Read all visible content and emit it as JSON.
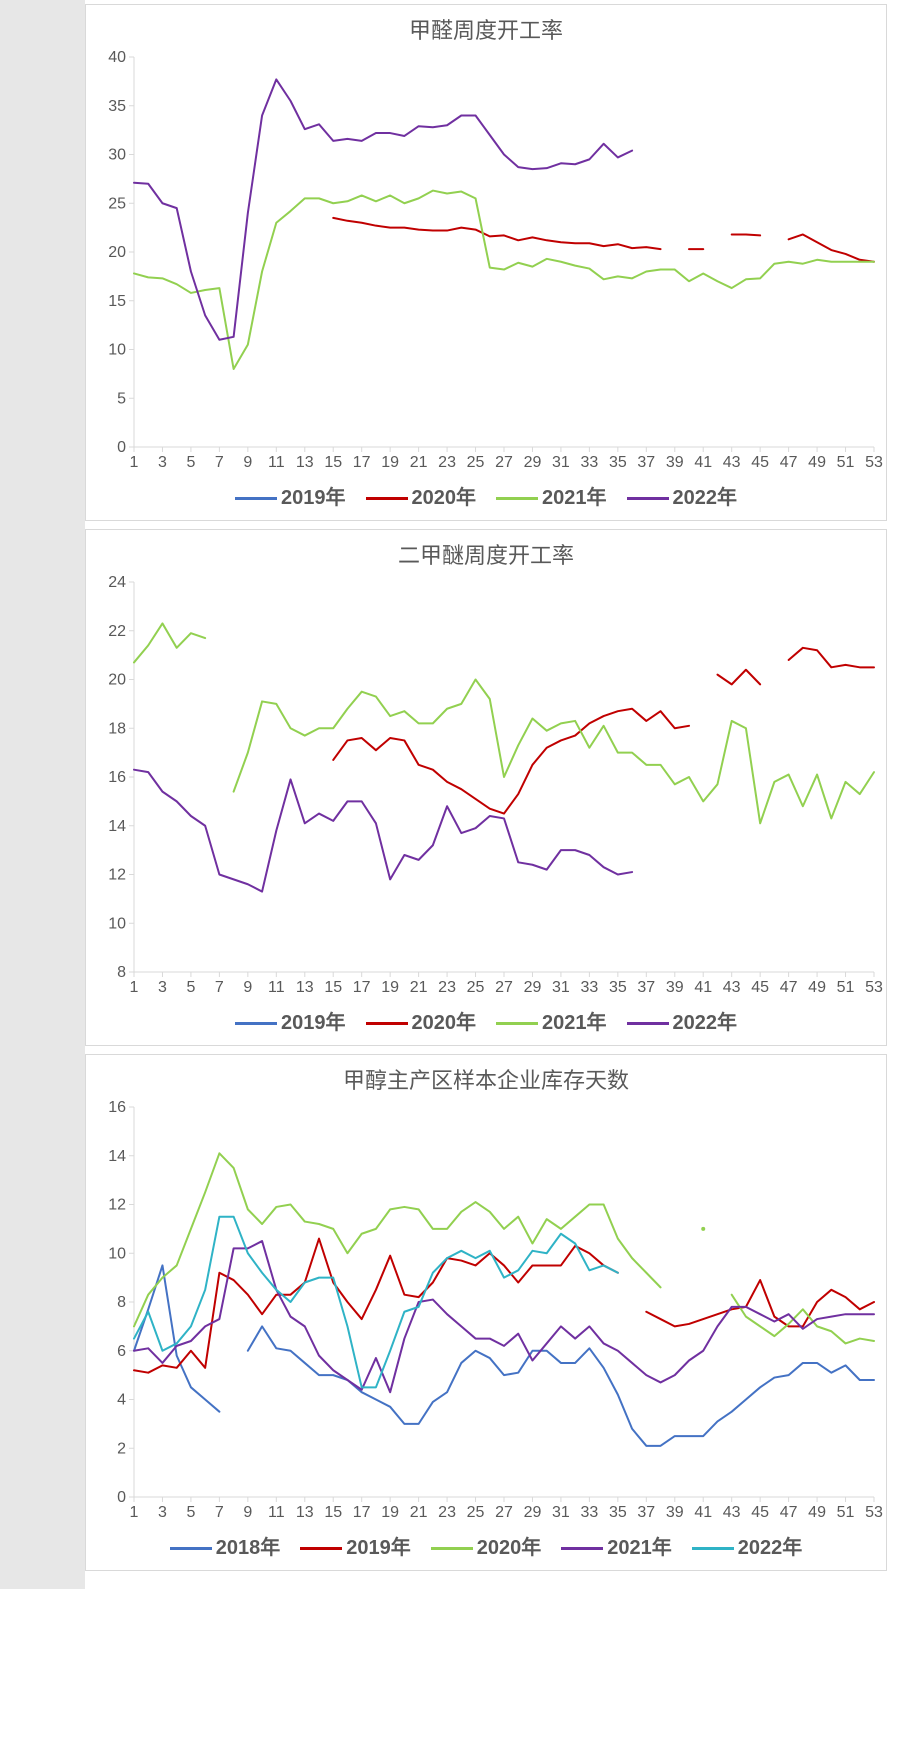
{
  "chart1": {
    "type": "line",
    "title": "甲醛周度开工率",
    "title_fontsize": 22,
    "title_color": "#595959",
    "background_color": "#ffffff",
    "plot_border_color": "#d9d9d9",
    "axis_color": "#d9d9d9",
    "tick_label_color": "#595959",
    "tick_fontsize": 16,
    "x_categories": [
      1,
      2,
      3,
      4,
      5,
      6,
      7,
      8,
      9,
      10,
      11,
      12,
      13,
      14,
      15,
      16,
      17,
      18,
      19,
      20,
      21,
      22,
      23,
      24,
      25,
      26,
      27,
      28,
      29,
      30,
      31,
      32,
      33,
      34,
      35,
      36,
      37,
      38,
      39,
      40,
      41,
      42,
      43,
      44,
      45,
      46,
      47,
      48,
      49,
      50,
      51,
      52,
      53
    ],
    "x_tick_step": 2,
    "ylim": [
      0,
      40
    ],
    "ytick_step": 5,
    "grid": false,
    "line_width": 2,
    "legend_fontsize": 20,
    "legend_fontweight": "bold",
    "legend_color": "#595959",
    "series": [
      {
        "name": "2019年",
        "color": "#4472c4",
        "data": []
      },
      {
        "name": "2020年",
        "color": "#c00000",
        "data": [
          null,
          null,
          null,
          null,
          null,
          null,
          null,
          null,
          null,
          null,
          null,
          null,
          null,
          null,
          23.5,
          23.2,
          23.0,
          22.7,
          22.5,
          22.5,
          22.3,
          22.2,
          22.2,
          22.5,
          22.3,
          21.6,
          21.7,
          21.2,
          21.5,
          21.2,
          21.0,
          20.9,
          20.9,
          20.6,
          20.8,
          20.4,
          20.5,
          20.3,
          null,
          20.3,
          20.3,
          null,
          21.8,
          21.8,
          21.7,
          null,
          21.3,
          21.8,
          21.0,
          20.2,
          19.8,
          19.2,
          19.0
        ]
      },
      {
        "name": "2021年",
        "color": "#92d050",
        "data": [
          17.8,
          17.4,
          17.3,
          16.7,
          15.8,
          16.1,
          16.3,
          8.0,
          10.5,
          18.0,
          23.0,
          24.2,
          25.5,
          25.5,
          25.0,
          25.2,
          25.8,
          25.2,
          25.8,
          25.0,
          25.5,
          26.3,
          26.0,
          26.2,
          25.5,
          18.4,
          18.2,
          18.9,
          18.5,
          19.3,
          19.0,
          18.6,
          18.3,
          17.2,
          17.5,
          17.3,
          18.0,
          18.2,
          18.2,
          17.0,
          17.8,
          17.0,
          16.3,
          17.2,
          17.3,
          18.8,
          19.0,
          18.8,
          19.2,
          19.0,
          19.0,
          19.0,
          19.0
        ]
      },
      {
        "name": "2022年",
        "color": "#7030a0",
        "data": [
          27.1,
          27.0,
          25.0,
          24.5,
          18.0,
          13.5,
          11.0,
          11.3,
          24.0,
          34.0,
          37.7,
          35.5,
          32.6,
          33.1,
          31.4,
          31.6,
          31.4,
          32.2,
          32.2,
          31.9,
          32.9,
          32.8,
          33.0,
          34.0,
          34.0,
          32.0,
          30.0,
          28.7,
          28.5,
          28.6,
          29.1,
          29.0,
          29.5,
          31.1,
          29.7,
          30.4,
          null,
          null,
          null,
          null,
          null,
          null,
          null,
          null,
          null,
          null,
          null,
          null,
          null,
          null,
          null,
          null,
          null
        ]
      }
    ]
  },
  "chart2": {
    "type": "line",
    "title": "二甲醚周度开工率",
    "title_fontsize": 22,
    "title_color": "#595959",
    "background_color": "#ffffff",
    "plot_border_color": "#d9d9d9",
    "axis_color": "#d9d9d9",
    "tick_label_color": "#595959",
    "tick_fontsize": 16,
    "x_categories": [
      1,
      2,
      3,
      4,
      5,
      6,
      7,
      8,
      9,
      10,
      11,
      12,
      13,
      14,
      15,
      16,
      17,
      18,
      19,
      20,
      21,
      22,
      23,
      24,
      25,
      26,
      27,
      28,
      29,
      30,
      31,
      32,
      33,
      34,
      35,
      36,
      37,
      38,
      39,
      40,
      41,
      42,
      43,
      44,
      45,
      46,
      47,
      48,
      49,
      50,
      51,
      52,
      53
    ],
    "x_tick_step": 2,
    "ylim": [
      8,
      24
    ],
    "ytick_step": 2,
    "grid": false,
    "line_width": 2,
    "legend_fontsize": 20,
    "legend_fontweight": "bold",
    "legend_color": "#595959",
    "series": [
      {
        "name": "2019年",
        "color": "#4472c4",
        "data": []
      },
      {
        "name": "2020年",
        "color": "#c00000",
        "data": [
          null,
          null,
          null,
          null,
          null,
          null,
          null,
          null,
          null,
          null,
          null,
          null,
          null,
          null,
          16.7,
          17.5,
          17.6,
          17.1,
          17.6,
          17.5,
          16.5,
          16.3,
          15.8,
          15.5,
          15.1,
          14.7,
          14.5,
          15.3,
          16.5,
          17.2,
          17.5,
          17.7,
          18.2,
          18.5,
          18.7,
          18.8,
          18.3,
          18.7,
          18.0,
          18.1,
          null,
          20.2,
          19.8,
          20.4,
          19.8,
          null,
          20.8,
          21.3,
          21.2,
          20.5,
          20.6,
          20.5,
          20.5
        ]
      },
      {
        "name": "2021年",
        "color": "#92d050",
        "data": [
          20.7,
          21.4,
          22.3,
          21.3,
          21.9,
          21.7,
          null,
          15.4,
          17.0,
          19.1,
          19.0,
          18.0,
          17.7,
          18.0,
          18.0,
          18.8,
          19.5,
          19.3,
          18.5,
          18.7,
          18.2,
          18.2,
          18.8,
          19.0,
          20.0,
          19.2,
          16.0,
          17.3,
          18.4,
          17.9,
          18.2,
          18.3,
          17.2,
          18.1,
          17.0,
          17.0,
          16.5,
          16.5,
          15.7,
          16.0,
          15.0,
          15.7,
          18.3,
          18.0,
          14.1,
          15.8,
          16.1,
          14.8,
          16.1,
          14.3,
          15.8,
          15.3,
          16.2
        ]
      },
      {
        "name": "2022年",
        "color": "#7030a0",
        "data": [
          16.3,
          16.2,
          15.4,
          15.0,
          14.4,
          14.0,
          12.0,
          11.8,
          11.6,
          11.3,
          13.8,
          15.9,
          14.1,
          14.5,
          14.2,
          15.0,
          15.0,
          14.1,
          11.8,
          12.8,
          12.6,
          13.2,
          14.8,
          13.7,
          13.9,
          14.4,
          14.3,
          12.5,
          12.4,
          12.2,
          13.0,
          13.0,
          12.8,
          12.3,
          12.0,
          12.1,
          null,
          null,
          null,
          null,
          null,
          null,
          null,
          null,
          null,
          null,
          null,
          null,
          null,
          null,
          null,
          null,
          null
        ]
      }
    ]
  },
  "chart3": {
    "type": "line",
    "title": "甲醇主产区样本企业库存天数",
    "title_fontsize": 22,
    "title_color": "#595959",
    "background_color": "#ffffff",
    "plot_border_color": "#d9d9d9",
    "axis_color": "#d9d9d9",
    "tick_label_color": "#595959",
    "tick_fontsize": 16,
    "x_categories": [
      1,
      2,
      3,
      4,
      5,
      6,
      7,
      8,
      9,
      10,
      11,
      12,
      13,
      14,
      15,
      16,
      17,
      18,
      19,
      20,
      21,
      22,
      23,
      24,
      25,
      26,
      27,
      28,
      29,
      30,
      31,
      32,
      33,
      34,
      35,
      36,
      37,
      38,
      39,
      40,
      41,
      42,
      43,
      44,
      45,
      46,
      47,
      48,
      49,
      50,
      51,
      52,
      53
    ],
    "x_tick_step": 2,
    "ylim": [
      0,
      16
    ],
    "ytick_step": 2,
    "grid": false,
    "line_width": 2,
    "legend_fontsize": 20,
    "legend_fontweight": "bold",
    "legend_color": "#595959",
    "series": [
      {
        "name": "2018年",
        "color": "#4472c4",
        "data": [
          6.0,
          7.7,
          9.5,
          5.8,
          4.5,
          4.0,
          3.5,
          null,
          6.0,
          7.0,
          6.1,
          6.0,
          5.5,
          5.0,
          5.0,
          4.8,
          4.3,
          4.0,
          3.7,
          3.0,
          3.0,
          3.9,
          4.3,
          5.5,
          6.0,
          5.7,
          5.0,
          5.1,
          6.0,
          6.0,
          5.5,
          5.5,
          6.1,
          5.3,
          4.2,
          2.8,
          2.1,
          2.1,
          2.5,
          2.5,
          2.5,
          3.1,
          3.5,
          4.0,
          4.5,
          4.9,
          5.0,
          5.5,
          5.5,
          5.1,
          5.4,
          4.8,
          4.8
        ]
      },
      {
        "name": "2019年",
        "color": "#c00000",
        "data": [
          5.2,
          5.1,
          5.4,
          5.3,
          6.0,
          5.3,
          9.2,
          8.9,
          8.3,
          7.5,
          8.3,
          8.3,
          8.8,
          10.6,
          8.8,
          8.0,
          7.3,
          8.5,
          9.9,
          8.3,
          8.2,
          8.8,
          9.8,
          9.7,
          9.5,
          10.0,
          9.5,
          8.8,
          9.5,
          9.5,
          9.5,
          10.3,
          10.0,
          9.5,
          9.2,
          null,
          7.6,
          7.3,
          7.0,
          7.1,
          7.3,
          7.5,
          7.7,
          7.8,
          8.9,
          7.4,
          7.0,
          7.0,
          8.0,
          8.5,
          8.2,
          7.7,
          8.0
        ]
      },
      {
        "name": "2020年",
        "color": "#92d050",
        "data": [
          7.0,
          8.3,
          9.0,
          9.5,
          11.0,
          12.5,
          14.1,
          13.5,
          11.8,
          11.2,
          11.9,
          12.0,
          11.3,
          11.2,
          11.0,
          10.0,
          10.8,
          11.0,
          11.8,
          11.9,
          11.8,
          11.0,
          11.0,
          11.7,
          12.1,
          11.7,
          11.0,
          11.5,
          10.4,
          11.4,
          11.0,
          11.5,
          12.0,
          12.0,
          10.6,
          9.8,
          9.2,
          8.6,
          null,
          null,
          11.0,
          null,
          8.3,
          7.4,
          7.0,
          6.6,
          7.1,
          7.7,
          7.0,
          6.8,
          6.3,
          6.5,
          6.4
        ]
      },
      {
        "name": "2021年",
        "color": "#7030a0",
        "data": [
          6.0,
          6.1,
          5.5,
          6.2,
          6.4,
          7.0,
          7.3,
          10.2,
          10.2,
          10.5,
          8.5,
          7.4,
          7.0,
          5.8,
          5.2,
          4.8,
          4.4,
          5.7,
          4.3,
          6.5,
          8.0,
          8.1,
          7.5,
          7.0,
          6.5,
          6.5,
          6.2,
          6.7,
          5.6,
          6.3,
          7.0,
          6.5,
          7.0,
          6.3,
          6.0,
          5.5,
          5.0,
          4.7,
          5.0,
          5.6,
          6.0,
          7.0,
          7.8,
          7.8,
          7.5,
          7.2,
          7.5,
          6.9,
          7.3,
          7.4,
          7.5,
          7.5,
          7.5
        ]
      },
      {
        "name": "2022年",
        "color": "#2fb3c6",
        "data": [
          6.5,
          7.6,
          6.0,
          6.3,
          7.0,
          8.5,
          11.5,
          11.5,
          10.0,
          9.2,
          8.5,
          8.0,
          8.8,
          9.0,
          9.0,
          7.0,
          4.5,
          4.5,
          6.0,
          7.6,
          7.8,
          9.2,
          9.8,
          10.1,
          9.8,
          10.1,
          9.0,
          9.3,
          10.1,
          10.0,
          10.8,
          10.4,
          9.3,
          9.5,
          9.2,
          null,
          null,
          null,
          null,
          null,
          null,
          null,
          null,
          null,
          null,
          null,
          null,
          null,
          null,
          null,
          null,
          null,
          null
        ]
      }
    ]
  }
}
